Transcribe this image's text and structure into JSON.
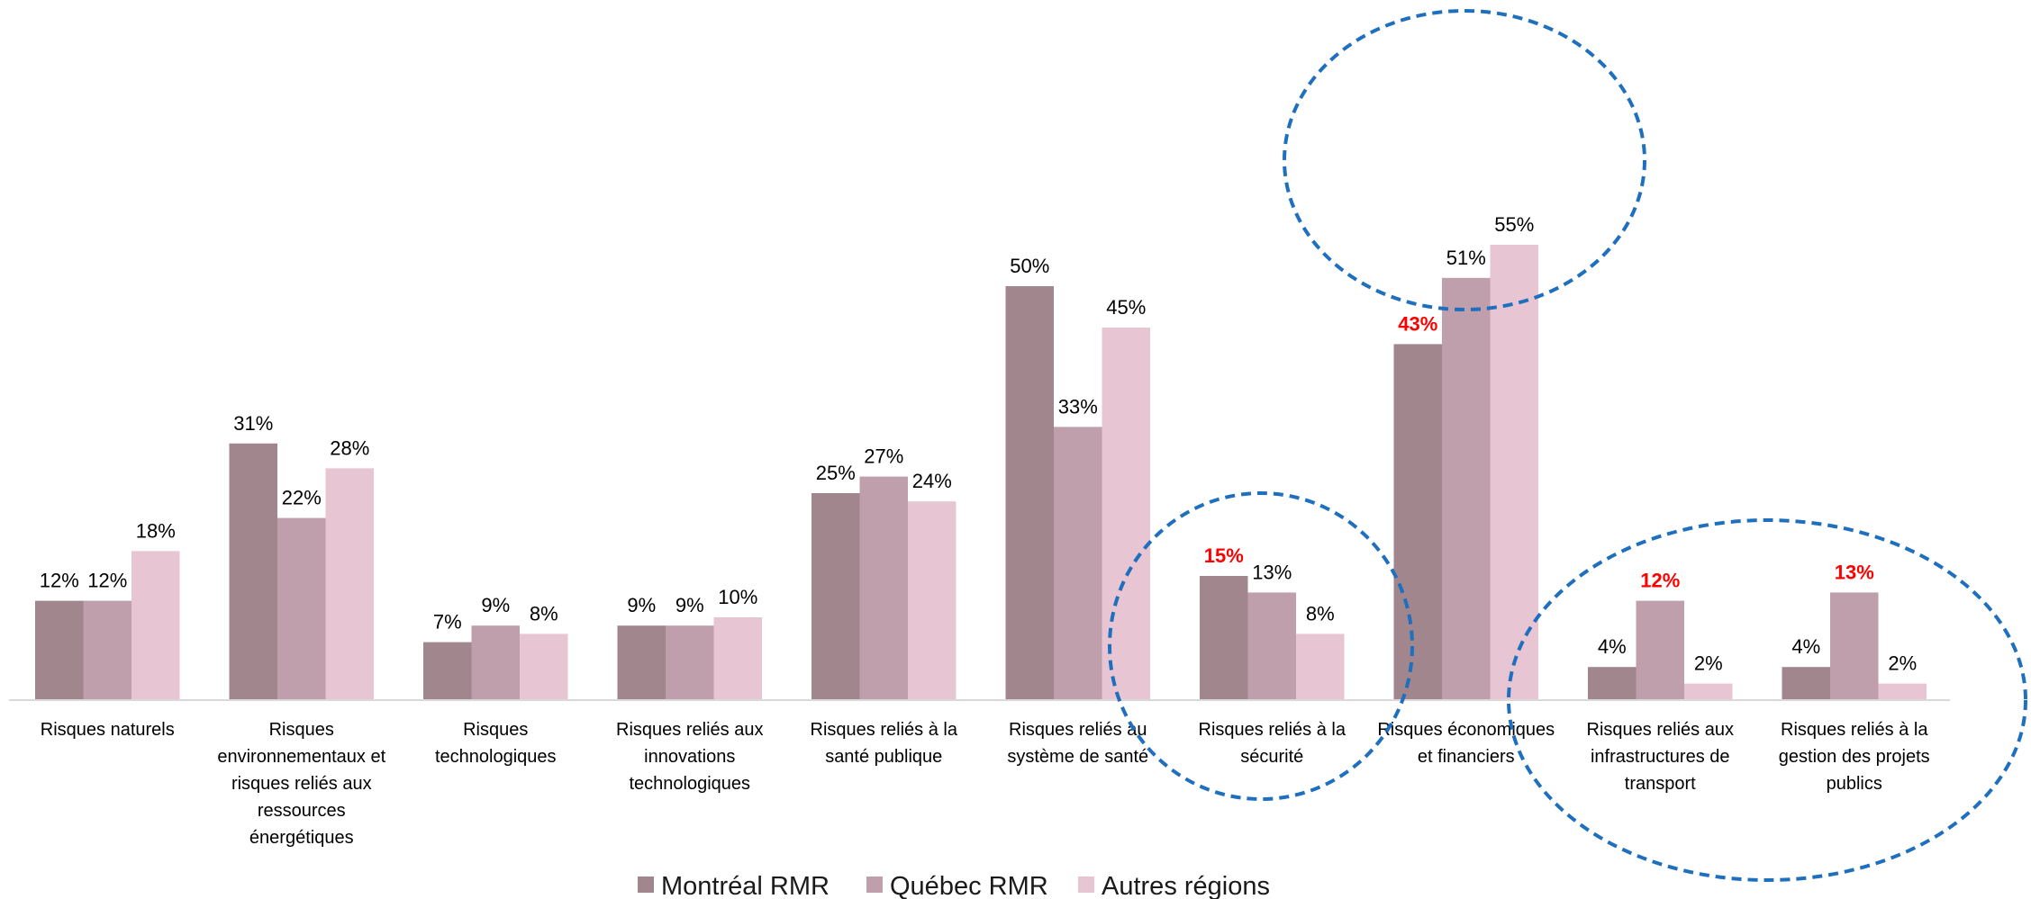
{
  "chart_data": {
    "type": "bar",
    "title": "",
    "xlabel": "",
    "ylabel": "",
    "ylim": [
      0,
      60
    ],
    "grid": false,
    "legend_position": "bottom-center",
    "categories": [
      [
        "Risques naturels"
      ],
      [
        "Risques",
        "environnementaux et",
        "risques reliés aux",
        "ressources",
        "énergétiques"
      ],
      [
        "Risques",
        "technologiques"
      ],
      [
        "Risques reliés aux",
        "innovations",
        "technologiques"
      ],
      [
        "Risques reliés à la",
        "santé publique"
      ],
      [
        "Risques reliés au",
        "système de santé"
      ],
      [
        "Risques reliés à la",
        "sécurité"
      ],
      [
        "Risques économiques",
        "et financiers"
      ],
      [
        "Risques reliés aux",
        "infrastructures de",
        "transport"
      ],
      [
        "Risques reliés à la",
        "gestion des projets",
        "publics"
      ]
    ],
    "series": [
      {
        "name": "Montréal RMR",
        "color": "#a1868d",
        "values": [
          12,
          31,
          7,
          9,
          25,
          50,
          15,
          43,
          4,
          4
        ]
      },
      {
        "name": "Québec RMR",
        "color": "#be9fab",
        "values": [
          12,
          22,
          9,
          9,
          27,
          33,
          13,
          51,
          12,
          13
        ]
      },
      {
        "name": "Autres régions",
        "color": "#e8c5d3",
        "values": [
          18,
          28,
          8,
          10,
          24,
          45,
          8,
          55,
          2,
          2
        ]
      }
    ],
    "data_labels": [
      [
        "12%",
        "31%",
        "7%",
        "9%",
        "25%",
        "50%",
        "15%",
        "43%",
        "4%",
        "4%"
      ],
      [
        "12%",
        "22%",
        "9%",
        "9%",
        "27%",
        "33%",
        "13%",
        "51%",
        "12%",
        "13%"
      ],
      [
        "18%",
        "28%",
        "8%",
        "10%",
        "24%",
        "45%",
        "8%",
        "55%",
        "2%",
        "2%"
      ]
    ],
    "highlighted_labels": [
      {
        "series": 0,
        "category": 6
      },
      {
        "series": 0,
        "category": 7
      },
      {
        "series": 1,
        "category": 8
      },
      {
        "series": 1,
        "category": 9
      }
    ],
    "highlight_color": "#ff0000",
    "annotation_ellipses": {
      "color": "#1f6fbf",
      "style": "dashed",
      "encircled_categories": [
        [
          6
        ],
        [
          7
        ],
        [
          8,
          9
        ]
      ]
    }
  }
}
